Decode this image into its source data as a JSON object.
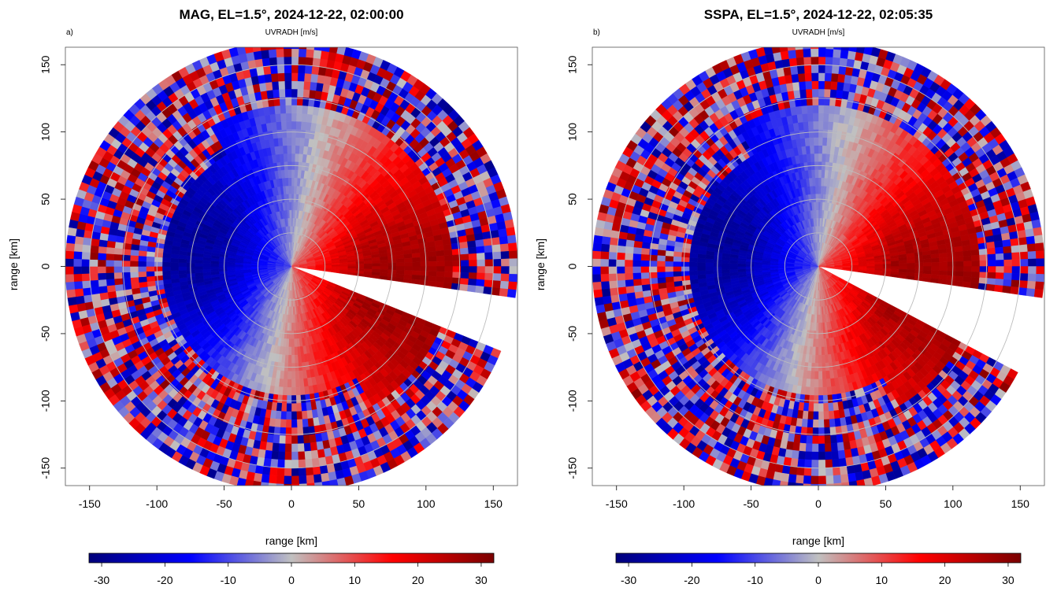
{
  "chart_data": [
    {
      "type": "heatmap",
      "panel_label": "a)",
      "title": "MAG, EL=1.5°, 2024-12-22, 02:00:00",
      "subtitle": "UVRADH [m/s]",
      "xlabel": "range [km]",
      "ylabel": "range [km]",
      "xlim": [
        -168,
        168
      ],
      "ylim": [
        -163,
        163
      ],
      "xticks": [
        -150,
        -100,
        -50,
        0,
        50,
        100,
        150
      ],
      "yticks": [
        -150,
        -100,
        -50,
        0,
        50,
        100,
        150
      ],
      "max_range_km": 168,
      "range_rings_km": [
        25,
        50,
        75,
        100,
        125,
        150
      ],
      "blocked_sector_deg": [
        97,
        112
      ],
      "colorbar": {
        "min": -32,
        "max": 32,
        "ticks": [
          -30,
          -20,
          -10,
          0,
          10,
          20,
          30
        ],
        "colors": [
          "#00007a",
          "#0000ff",
          "#c0c0c0",
          "#ff0000",
          "#7a0000"
        ]
      },
      "field": {
        "description_free_values": true,
        "inbound_peak_ms": -28,
        "outbound_peak_ms": 28,
        "zero_isodop_azimuth_deg": [
          12,
          192
        ]
      }
    },
    {
      "type": "heatmap",
      "panel_label": "b)",
      "title": "SSPA, EL=1.5°, 2024-12-22, 02:05:35",
      "subtitle": "UVRADH [m/s]",
      "xlabel": "range [km]",
      "ylabel": "range [km]",
      "xlim": [
        -168,
        168
      ],
      "ylim": [
        -163,
        163
      ],
      "xticks": [
        -150,
        -100,
        -50,
        0,
        50,
        100,
        150
      ],
      "yticks": [
        -150,
        -100,
        -50,
        0,
        50,
        100,
        150
      ],
      "max_range_km": 168,
      "range_rings_km": [
        25,
        50,
        75,
        100,
        125,
        150
      ],
      "blocked_sector_deg": [
        97,
        119
      ],
      "colorbar": {
        "min": -32,
        "max": 32,
        "ticks": [
          -30,
          -20,
          -10,
          0,
          10,
          20,
          30
        ],
        "colors": [
          "#00007a",
          "#0000ff",
          "#c0c0c0",
          "#ff0000",
          "#7a0000"
        ]
      },
      "field": {
        "description_free_values": true,
        "inbound_peak_ms": -28,
        "outbound_peak_ms": 28,
        "zero_isodop_azimuth_deg": [
          12,
          192
        ]
      }
    }
  ]
}
